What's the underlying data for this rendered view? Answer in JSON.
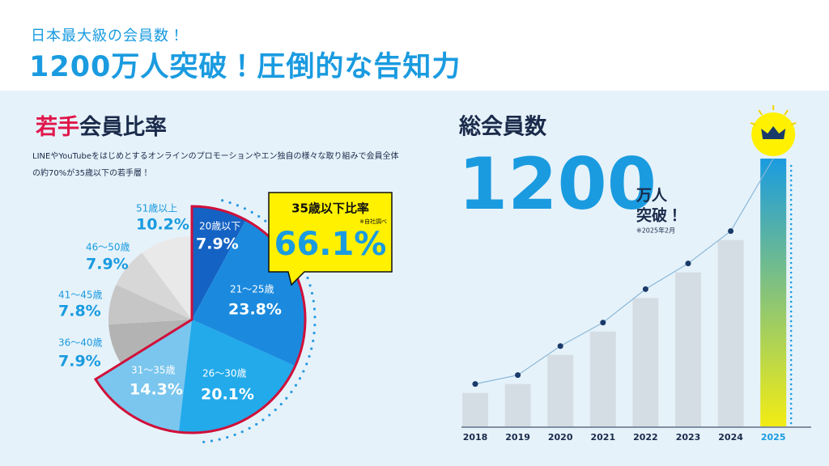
{
  "header": {
    "subtitle": "日本最大級の会員数！",
    "title": "1200万人突破！圧倒的な告知力"
  },
  "chart_data": [
    {
      "type": "pie",
      "title_accent": "若手",
      "title": "会員比率",
      "description": [
        "LINEやYouTubeをはじめとするオンラインのプロモーションやエン独自の様々な取り組みで会員全体",
        "の約70%が35歳以下の若手層！"
      ],
      "categories": [
        "20歳以下",
        "21～25歳",
        "26～30歳",
        "31～35歳",
        "36～40歳",
        "41～45歳",
        "46～50歳",
        "51歳以上"
      ],
      "values": [
        7.9,
        23.8,
        20.1,
        14.3,
        7.9,
        7.8,
        7.9,
        10.2
      ],
      "value_labels": [
        "7.9%",
        "23.8%",
        "20.1%",
        "14.3%",
        "7.9%",
        "7.8%",
        "7.9%",
        "10.2%"
      ],
      "colors": [
        "#1462c4",
        "#1b8ade",
        "#22aaeb",
        "#7ac6ee",
        "#b3b3b3",
        "#c6c6c6",
        "#d7d7d7",
        "#e9e9e9"
      ],
      "callout": {
        "title": "35歳以下比率",
        "note": "※自社調べ",
        "value": 66.1,
        "value_label": "66.1%"
      }
    },
    {
      "type": "bar",
      "title": "総会員数",
      "headline": 1200,
      "headline_unit": [
        "万人",
        "突破！"
      ],
      "note": "※2025年2月",
      "categories": [
        "2018",
        "2019",
        "2020",
        "2021",
        "2022",
        "2023",
        "2024",
        "2025"
      ],
      "values": [
        150,
        190,
        320,
        425,
        575,
        690,
        835,
        1200
      ],
      "color": "#d5dde4",
      "highlight_color": [
        "#1a9be0",
        "#f2ec14"
      ],
      "line_color": "#8ab8d8",
      "marker_color": "#1a3a6a"
    }
  ]
}
